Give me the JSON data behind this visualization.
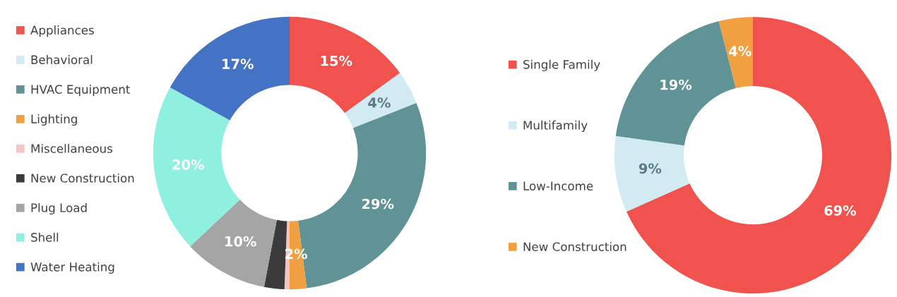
{
  "chart_data": [
    {
      "type": "donut",
      "categories": [
        "Appliances",
        "Behavioral",
        "HVAC Equipment",
        "Lighting",
        "Miscellaneous",
        "New Construction",
        "Plug Load",
        "Shell",
        "Water Heating"
      ],
      "values": [
        15,
        4,
        29,
        2,
        0.6,
        2.4,
        10,
        20,
        17
      ],
      "colors": [
        "#f0534d",
        "#d2eaf1",
        "#5f9396",
        "#f0a040",
        "#f7c3c3",
        "#3b3b3b",
        "#a5a5a5",
        "#8ff0e0",
        "#4472c4"
      ],
      "value_labels": [
        "15%",
        "4%",
        "29%",
        "2%",
        null,
        null,
        "10%",
        "20%",
        "17%"
      ],
      "legend": "left"
    },
    {
      "type": "donut",
      "categories": [
        "Single Family",
        "Multifamily",
        "Low-Income",
        "New Construction"
      ],
      "values": [
        69,
        9,
        19,
        4
      ],
      "colors": [
        "#f0534d",
        "#d2eaf1",
        "#5f9396",
        "#f0a040"
      ],
      "value_labels": [
        "69%",
        "9%",
        "19%",
        "4%"
      ],
      "legend": "left"
    }
  ]
}
